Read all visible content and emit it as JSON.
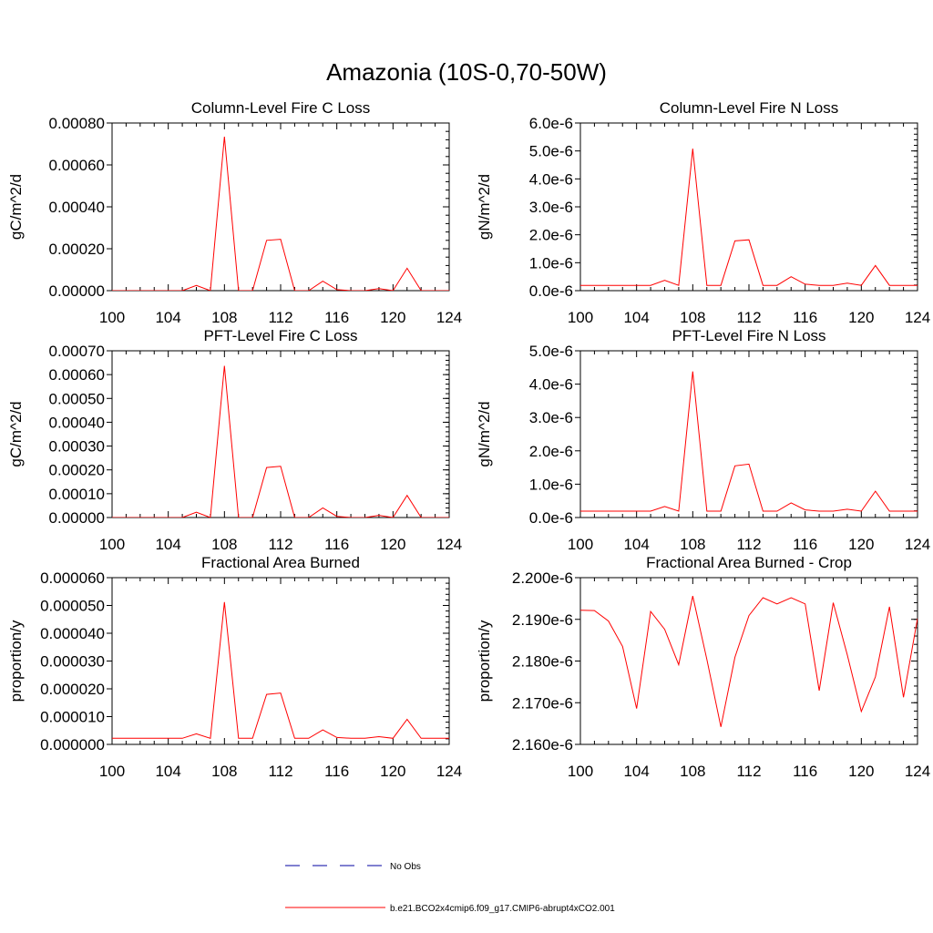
{
  "figure": {
    "title": "Amazonia (10S-0,70-50W)"
  },
  "colors": {
    "model_line": "#ff0000",
    "obs_line": "#0000a0",
    "axis": "#000000"
  },
  "legend": {
    "items": [
      {
        "label": "No Obs",
        "style": "dashed",
        "color": "#0000a0"
      },
      {
        "label": "b.e21.BCO2x4cmip6.f09_g17.CMIP6-abrupt4xCO2.001",
        "style": "solid",
        "color": "#ff0000"
      }
    ]
  },
  "chart_data": [
    {
      "type": "line",
      "title": "Column-Level Fire C Loss",
      "ylabel": "gC/m^2/d",
      "xlim": [
        100,
        124
      ],
      "ylim": [
        0,
        0.0008
      ],
      "x_ticks": [
        "100",
        "104",
        "108",
        "112",
        "116",
        "120",
        "124"
      ],
      "y_ticks": [
        {
          "value": 0,
          "label": "0.00000"
        },
        {
          "value": 0.0002,
          "label": "0.00020"
        },
        {
          "value": 0.0004,
          "label": "0.00040"
        },
        {
          "value": 0.0006,
          "label": "0.00060"
        },
        {
          "value": 0.0008,
          "label": "0.00080"
        }
      ],
      "x": [
        100,
        101,
        102,
        103,
        104,
        105,
        106,
        107,
        108,
        109,
        110,
        111,
        112,
        113,
        114,
        115,
        116,
        117,
        118,
        119,
        120,
        121,
        122,
        123,
        124
      ],
      "series": [
        {
          "values": [
            0,
            0,
            0,
            0,
            0,
            0,
            2.5e-05,
            0,
            0.000735,
            0,
            0,
            0.00024,
            0.000245,
            0,
            0,
            4.5e-05,
            5e-06,
            0,
            0,
            1e-05,
            0,
            0.000107,
            0,
            0,
            0
          ]
        }
      ]
    },
    {
      "type": "line",
      "title": "Column-Level Fire N Loss",
      "ylabel": "gN/m^2/d",
      "xlim": [
        100,
        124
      ],
      "ylim": [
        0,
        6e-06
      ],
      "x_ticks": [
        "100",
        "104",
        "108",
        "112",
        "116",
        "120",
        "124"
      ],
      "y_ticks": [
        {
          "value": 0,
          "label": "0.0e-6"
        },
        {
          "value": 1e-06,
          "label": "1.0e-6"
        },
        {
          "value": 2e-06,
          "label": "2.0e-6"
        },
        {
          "value": 3e-06,
          "label": "3.0e-6"
        },
        {
          "value": 4e-06,
          "label": "4.0e-6"
        },
        {
          "value": 5e-06,
          "label": "5.0e-6"
        },
        {
          "value": 6e-06,
          "label": "6.0e-6"
        }
      ],
      "x": [
        100,
        101,
        102,
        103,
        104,
        105,
        106,
        107,
        108,
        109,
        110,
        111,
        112,
        113,
        114,
        115,
        116,
        117,
        118,
        119,
        120,
        121,
        122,
        123,
        124
      ],
      "series": [
        {
          "values": [
            1.9e-07,
            1.9e-07,
            1.9e-07,
            1.9e-07,
            1.9e-07,
            1.9e-07,
            3.7e-07,
            1.9e-07,
            5.08e-06,
            1.9e-07,
            1.9e-07,
            1.78e-06,
            1.82e-06,
            1.9e-07,
            1.9e-07,
            5e-07,
            2.3e-07,
            1.9e-07,
            1.9e-07,
            2.7e-07,
            1.9e-07,
            9e-07,
            1.9e-07,
            1.9e-07,
            1.9e-07
          ]
        }
      ]
    },
    {
      "type": "line",
      "title": "PFT-Level Fire C Loss",
      "ylabel": "gC/m^2/d",
      "xlim": [
        100,
        124
      ],
      "ylim": [
        0,
        0.0007
      ],
      "x_ticks": [
        "100",
        "104",
        "108",
        "112",
        "116",
        "120",
        "124"
      ],
      "y_ticks": [
        {
          "value": 0,
          "label": "0.00000"
        },
        {
          "value": 0.0001,
          "label": "0.00010"
        },
        {
          "value": 0.0002,
          "label": "0.00020"
        },
        {
          "value": 0.0003,
          "label": "0.00030"
        },
        {
          "value": 0.0004,
          "label": "0.00040"
        },
        {
          "value": 0.0005,
          "label": "0.00050"
        },
        {
          "value": 0.0006,
          "label": "0.00060"
        },
        {
          "value": 0.0007,
          "label": "0.00070"
        }
      ],
      "x": [
        100,
        101,
        102,
        103,
        104,
        105,
        106,
        107,
        108,
        109,
        110,
        111,
        112,
        113,
        114,
        115,
        116,
        117,
        118,
        119,
        120,
        121,
        122,
        123,
        124
      ],
      "series": [
        {
          "values": [
            0,
            0,
            0,
            0,
            0,
            0,
            2.2e-05,
            0,
            0.000637,
            0,
            0,
            0.00021,
            0.000215,
            0,
            0,
            4e-05,
            5e-06,
            0,
            0,
            9e-06,
            0,
            9.3e-05,
            0,
            0,
            0
          ]
        }
      ]
    },
    {
      "type": "line",
      "title": "PFT-Level Fire N Loss",
      "ylabel": "gN/m^2/d",
      "xlim": [
        100,
        124
      ],
      "ylim": [
        0,
        5e-06
      ],
      "x_ticks": [
        "100",
        "104",
        "108",
        "112",
        "116",
        "120",
        "124"
      ],
      "y_ticks": [
        {
          "value": 0,
          "label": "0.0e-6"
        },
        {
          "value": 1e-06,
          "label": "1.0e-6"
        },
        {
          "value": 2e-06,
          "label": "2.0e-6"
        },
        {
          "value": 3e-06,
          "label": "3.0e-6"
        },
        {
          "value": 4e-06,
          "label": "4.0e-6"
        },
        {
          "value": 5e-06,
          "label": "5.0e-6"
        }
      ],
      "x": [
        100,
        101,
        102,
        103,
        104,
        105,
        106,
        107,
        108,
        109,
        110,
        111,
        112,
        113,
        114,
        115,
        116,
        117,
        118,
        119,
        120,
        121,
        122,
        123,
        124
      ],
      "series": [
        {
          "values": [
            1.9e-07,
            1.9e-07,
            1.9e-07,
            1.9e-07,
            1.9e-07,
            1.9e-07,
            3.3e-07,
            1.9e-07,
            4.38e-06,
            1.9e-07,
            1.9e-07,
            1.55e-06,
            1.6e-06,
            1.9e-07,
            1.9e-07,
            4.4e-07,
            2.3e-07,
            1.9e-07,
            1.9e-07,
            2.5e-07,
            1.9e-07,
            7.9e-07,
            1.9e-07,
            1.9e-07,
            1.9e-07
          ]
        }
      ]
    },
    {
      "type": "line",
      "title": "Fractional Area Burned",
      "ylabel": "proportion/y",
      "xlim": [
        100,
        124
      ],
      "ylim": [
        0,
        6e-05
      ],
      "x_ticks": [
        "100",
        "104",
        "108",
        "112",
        "116",
        "120",
        "124"
      ],
      "y_ticks": [
        {
          "value": 0,
          "label": "0.000000"
        },
        {
          "value": 1e-05,
          "label": "0.000010"
        },
        {
          "value": 2e-05,
          "label": "0.000020"
        },
        {
          "value": 3e-05,
          "label": "0.000030"
        },
        {
          "value": 4e-05,
          "label": "0.000040"
        },
        {
          "value": 5e-05,
          "label": "0.000050"
        },
        {
          "value": 6e-05,
          "label": "0.000060"
        }
      ],
      "x": [
        100,
        101,
        102,
        103,
        104,
        105,
        106,
        107,
        108,
        109,
        110,
        111,
        112,
        113,
        114,
        115,
        116,
        117,
        118,
        119,
        120,
        121,
        122,
        123,
        124
      ],
      "series": [
        {
          "values": [
            2.2e-06,
            2.2e-06,
            2.2e-06,
            2.2e-06,
            2.2e-06,
            2.2e-06,
            3.8e-06,
            2.2e-06,
            5.12e-05,
            2.2e-06,
            2.2e-06,
            1.8e-05,
            1.85e-05,
            2.2e-06,
            2.2e-06,
            5.2e-06,
            2.5e-06,
            2.2e-06,
            2.2e-06,
            2.8e-06,
            2.2e-06,
            9e-06,
            2.2e-06,
            2.2e-06,
            2.2e-06
          ]
        }
      ]
    },
    {
      "type": "line",
      "title": "Fractional Area Burned - Crop",
      "ylabel": "proportion/y",
      "xlim": [
        100,
        124
      ],
      "ylim": [
        2.16e-06,
        2.2e-06
      ],
      "x_ticks": [
        "100",
        "104",
        "108",
        "112",
        "116",
        "120",
        "124"
      ],
      "y_ticks": [
        {
          "value": 2.16e-06,
          "label": "2.160e-6"
        },
        {
          "value": 2.17e-06,
          "label": "2.170e-6"
        },
        {
          "value": 2.18e-06,
          "label": "2.180e-6"
        },
        {
          "value": 2.19e-06,
          "label": "2.190e-6"
        },
        {
          "value": 2.2e-06,
          "label": "2.200e-6"
        }
      ],
      "x": [
        100,
        101,
        102,
        103,
        104,
        105,
        106,
        107,
        108,
        109,
        110,
        111,
        112,
        113,
        114,
        115,
        116,
        117,
        118,
        119,
        120,
        121,
        122,
        123,
        124
      ],
      "series": [
        {
          "values": [
            2.1922e-06,
            2.1921e-06,
            2.1896e-06,
            2.1835e-06,
            2.1686e-06,
            2.1919e-06,
            2.1876e-06,
            2.1791e-06,
            2.1956e-06,
            2.1804e-06,
            2.1642e-06,
            2.1809e-06,
            2.1909e-06,
            2.1952e-06,
            2.1937e-06,
            2.1952e-06,
            2.1937e-06,
            2.1729e-06,
            2.194e-06,
            2.1815e-06,
            2.1679e-06,
            2.1762e-06,
            2.193e-06,
            2.1713e-06,
            2.1902e-06
          ]
        }
      ]
    }
  ]
}
